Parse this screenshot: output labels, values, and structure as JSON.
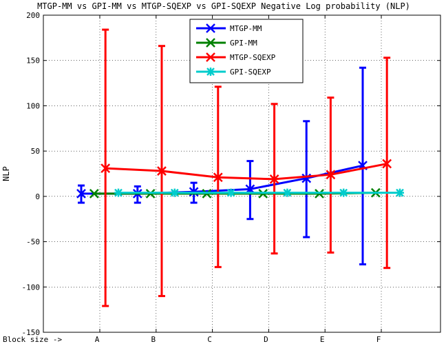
{
  "chart_data": {
    "type": "line",
    "title": "MTGP-MM vs GPI-MM vs MTGP-SQEXP vs GPI-SQEXP Negative Log probability (NLP)",
    "xlabel": "",
    "ylabel": "NLP",
    "x_prefix_label": "Block size ->",
    "categories": [
      "A",
      "B",
      "C",
      "D",
      "E",
      "F"
    ],
    "ylim": [
      -150,
      200
    ],
    "yticks": [
      -150,
      -100,
      -50,
      0,
      50,
      100,
      150,
      200
    ],
    "grid": true,
    "legend_position": "top-center",
    "series": [
      {
        "name": "MTGP-MM",
        "color": "#0000ff",
        "offset": -0.33,
        "values": [
          3,
          3,
          5,
          8,
          20,
          34
        ],
        "error_low": [
          -7,
          -7,
          -7,
          -25,
          -45,
          -75
        ],
        "error_high": [
          12,
          11,
          15,
          39,
          83,
          142
        ]
      },
      {
        "name": "GPI-MM",
        "color": "#008000",
        "offset": -0.1,
        "values": [
          3,
          3,
          3,
          3,
          3,
          4
        ],
        "error_low": [
          3,
          3,
          3,
          3,
          3,
          4
        ],
        "error_high": [
          3,
          3,
          3,
          3,
          3,
          4
        ]
      },
      {
        "name": "MTGP-SQEXP",
        "color": "#ff0000",
        "offset": 0.1,
        "values": [
          31,
          28,
          21,
          19,
          24,
          36
        ],
        "error_low": [
          -121,
          -110,
          -78,
          -63,
          -62,
          -79
        ],
        "error_high": [
          184,
          166,
          121,
          102,
          109,
          153
        ]
      },
      {
        "name": "GPI-SQEXP",
        "color": "#00cccc",
        "offset": 0.33,
        "values": [
          4,
          4,
          4,
          4,
          4,
          4
        ],
        "error_low": [
          4,
          4,
          4,
          4,
          4,
          4
        ],
        "error_high": [
          4,
          4,
          4,
          4,
          4,
          4
        ]
      }
    ]
  }
}
